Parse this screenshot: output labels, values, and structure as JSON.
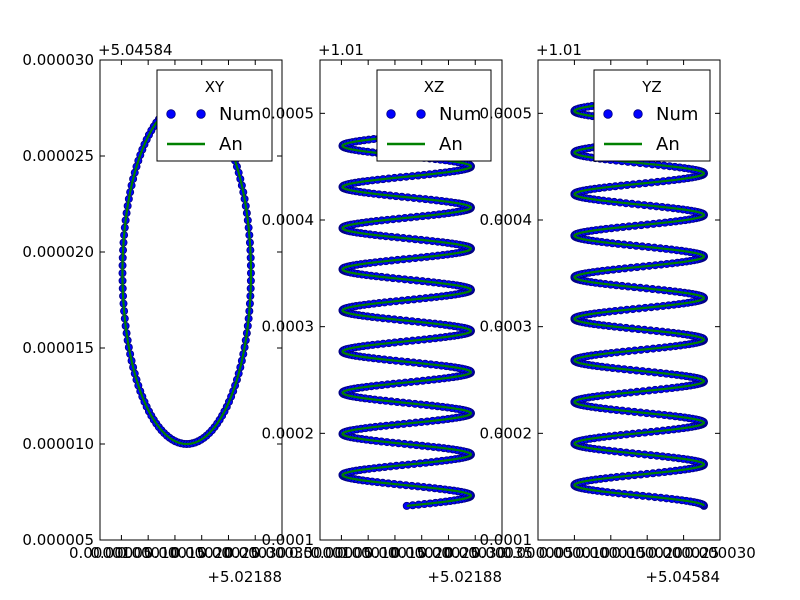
{
  "chart_data": [
    {
      "type": "line",
      "legend": {
        "title": "XY",
        "placement": "top-right",
        "entries": [
          "Num",
          "An"
        ]
      },
      "x_offset_label": "+5.02188",
      "y_offset_label": "+5.04584",
      "xlim": [
        1e-05,
        0.00035
      ],
      "ylim": [
        5e-06,
        3e-05
      ],
      "x_ticks": [
        1e-05,
        5e-05,
        0.0001,
        0.00015,
        0.0002,
        0.00025,
        0.0003,
        0.00035
      ],
      "x_tick_labels": [
        "0.00001",
        "0.00005",
        "0.00010",
        "0.00015",
        "0.00020",
        "0.00025",
        "0.00030",
        "0.00035"
      ],
      "y_ticks": [
        5e-06,
        1e-05,
        1.5e-05,
        2e-05,
        2.5e-05,
        3e-05
      ],
      "y_tick_labels": [
        "0.000005",
        "0.000010",
        "0.000015",
        "0.000020",
        "0.000025",
        "0.000030"
      ],
      "series": [
        {
          "name": "Num",
          "style": "markers",
          "color": "#0000ff",
          "edge_color": "#000080",
          "curve": {
            "kind": "ellipse",
            "cx": 0.000172,
            "cy": 1.89e-05,
            "rx": 0.00012,
            "ry": 8.9e-06,
            "samples": 140
          }
        },
        {
          "name": "An",
          "style": "line",
          "color": "#008000",
          "curve": {
            "kind": "ellipse",
            "cx": 0.000172,
            "cy": 1.89e-05,
            "rx": 0.00012,
            "ry": 8.9e-06,
            "samples": 200
          }
        }
      ]
    },
    {
      "type": "line",
      "legend": {
        "title": "XZ",
        "placement": "top-right",
        "entries": [
          "Num",
          "An"
        ]
      },
      "x_offset_label": "+5.02188",
      "y_offset_label": "+1.01",
      "xlim": [
        1e-05,
        0.00035
      ],
      "ylim": [
        0.0001,
        0.00055
      ],
      "x_ticks": [
        1e-05,
        5e-05,
        0.0001,
        0.00015,
        0.0002,
        0.00025,
        0.0003,
        0.00035
      ],
      "x_tick_labels": [
        "0.00001",
        "0.00005",
        "0.00010",
        "0.00015",
        "0.00020",
        "0.00025",
        "0.00030",
        "0.00035"
      ],
      "y_ticks": [
        0.0001,
        0.0002,
        0.0003,
        0.0004,
        0.0005
      ],
      "y_tick_labels": [
        "0.0001",
        "0.0002",
        "0.0003",
        "0.0004",
        "0.0005"
      ],
      "series": [
        {
          "name": "Num",
          "style": "markers",
          "color": "#0000ff",
          "edge_color": "#000080",
          "curve": {
            "kind": "helix",
            "center": 0.000172,
            "amp": 0.00012,
            "phase": -1.57,
            "z_start": 0.000132,
            "z_end": 0.000485,
            "turns": 9.15,
            "samples": 620
          }
        },
        {
          "name": "An",
          "style": "line",
          "color": "#008000",
          "curve": {
            "kind": "helix",
            "center": 0.000172,
            "amp": 0.00012,
            "phase": -1.57,
            "z_start": 0.000132,
            "z_end": 0.000485,
            "turns": 9.15,
            "samples": 900
          }
        }
      ]
    },
    {
      "type": "line",
      "legend": {
        "title": "YZ",
        "placement": "top-right",
        "entries": [
          "Num",
          "An"
        ]
      },
      "x_offset_label": "+5.04584",
      "y_offset_label": "+1.01",
      "xlim": [
        5e-06,
        3e-05
      ],
      "ylim": [
        0.0001,
        0.00055
      ],
      "x_ticks": [
        5e-06,
        1e-05,
        1.5e-05,
        2e-05,
        2.5e-05,
        3e-05
      ],
      "x_tick_labels": [
        "0.000005",
        "0.000010",
        "0.000015",
        "0.000020",
        "0.000025",
        "0.000030"
      ],
      "y_ticks": [
        0.0001,
        0.0002,
        0.0003,
        0.0004,
        0.0005
      ],
      "y_tick_labels": [
        "0.0001",
        "0.0002",
        "0.0003",
        "0.0004",
        "0.0005"
      ],
      "series": [
        {
          "name": "Num",
          "style": "markers",
          "color": "#0000ff",
          "edge_color": "#000080",
          "curve": {
            "kind": "helix",
            "center": 1.89e-05,
            "amp": 8.9e-06,
            "phase": 0.0,
            "z_start": 0.000132,
            "z_end": 0.000508,
            "turns": 9.65,
            "samples": 640
          }
        },
        {
          "name": "An",
          "style": "line",
          "color": "#008000",
          "curve": {
            "kind": "helix",
            "center": 1.89e-05,
            "amp": 8.9e-06,
            "phase": 0.0,
            "z_start": 0.000132,
            "z_end": 0.000508,
            "turns": 9.65,
            "samples": 900
          }
        }
      ]
    }
  ]
}
